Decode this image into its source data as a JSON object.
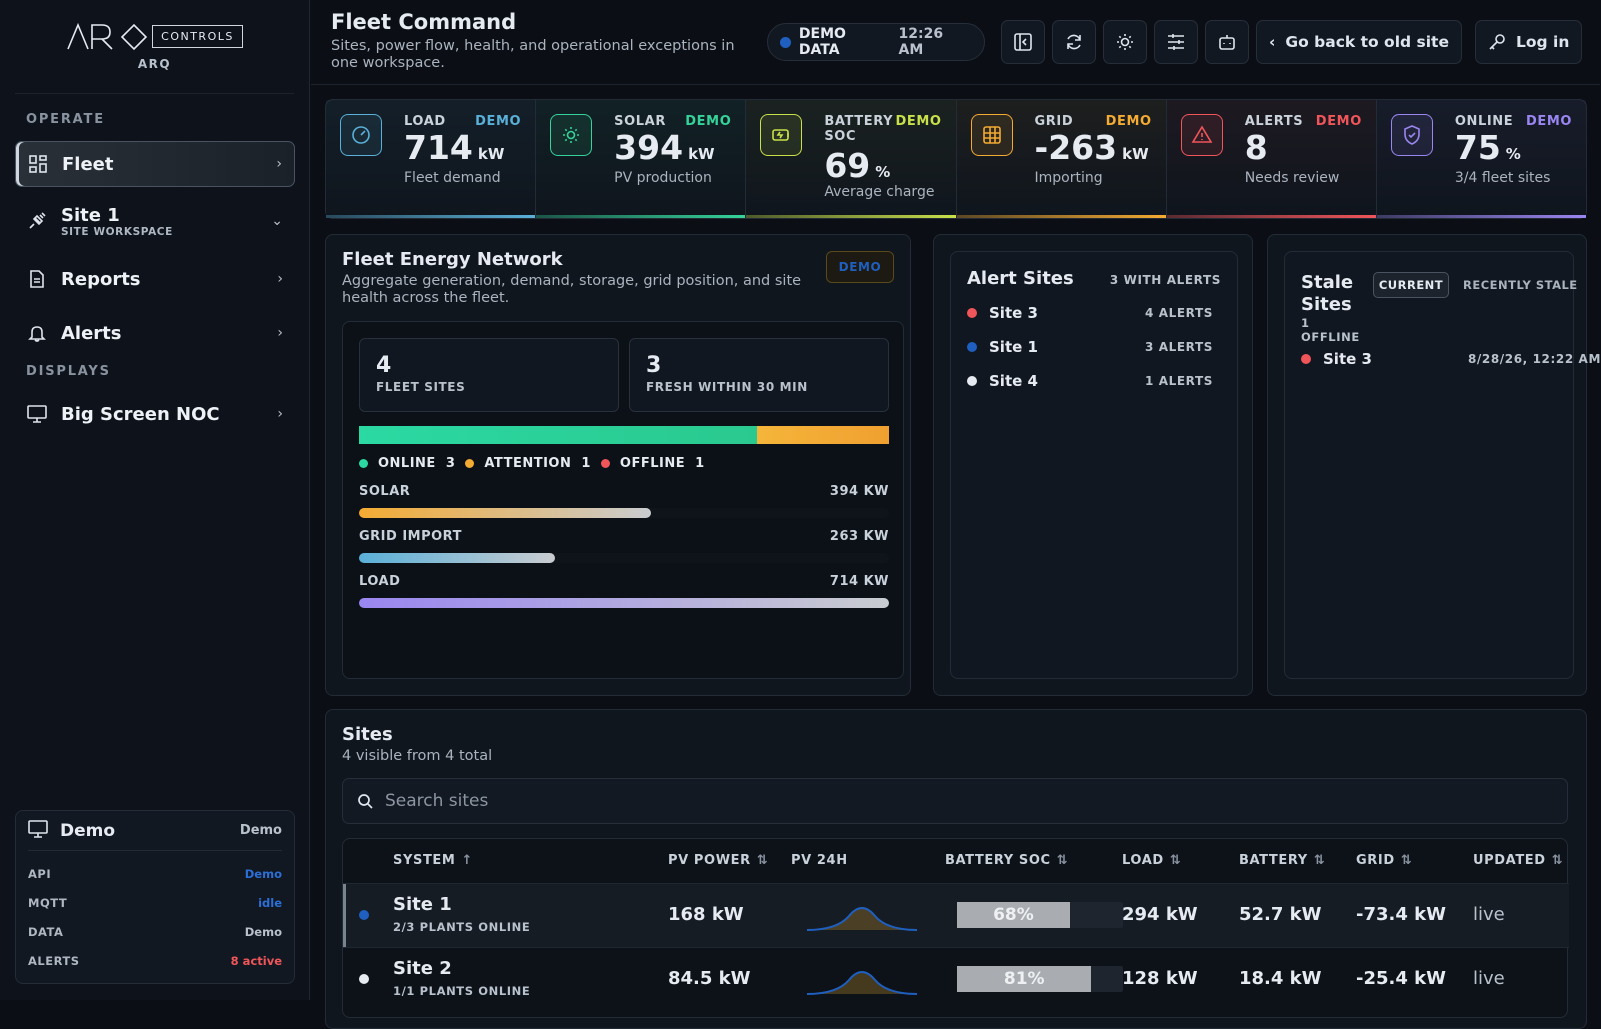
{
  "brand": {
    "logo": "ARQ",
    "tag": "CONTROLS",
    "sub": "ARQ"
  },
  "sidebar": {
    "operate": "OPERATE",
    "displays": "DISPLAYS",
    "fleet": "Fleet",
    "site1": "Site 1",
    "site1_sub": "SITE WORKSPACE",
    "reports": "Reports",
    "alerts": "Alerts",
    "noc": "Big Screen NOC"
  },
  "demo": {
    "title": "Demo",
    "badge": "Demo",
    "rows": [
      {
        "k": "API",
        "v": "Demo",
        "c": "#2b6fd6"
      },
      {
        "k": "MQTT",
        "v": "idle",
        "c": "#2b6fd6"
      },
      {
        "k": "DATA",
        "v": "Demo",
        "c": "#b8c1cc"
      },
      {
        "k": "ALERTS",
        "v": "8 active",
        "c": "#f0555a"
      }
    ]
  },
  "header": {
    "title": "Fleet Command",
    "subtitle": "Sites, power flow, health, and operational exceptions in one workspace.",
    "pill_label": "DEMO DATA",
    "pill_time": "12:26 AM",
    "back": "Go back to old site",
    "login": "Log in"
  },
  "kpis": [
    {
      "label": "LOAD",
      "demo": "DEMO",
      "value": "714",
      "unit": "kW",
      "caption": "Fleet demand",
      "color": "#5ab0d8",
      "icon": "gauge-icon"
    },
    {
      "label": "SOLAR",
      "demo": "DEMO",
      "value": "394",
      "unit": "kW",
      "caption": "PV production",
      "color": "#35d39a",
      "icon": "sun-icon"
    },
    {
      "label": "BATTERY SOC",
      "demo": "DEMO",
      "value": "69",
      "unit": "%",
      "caption": "Average charge",
      "color": "#c8e04a",
      "icon": "battery-icon"
    },
    {
      "label": "GRID",
      "demo": "DEMO",
      "value": "-263",
      "unit": "kW",
      "caption": "Importing",
      "color": "#f4ab32",
      "icon": "grid-icon"
    },
    {
      "label": "ALERTS",
      "demo": "DEMO",
      "value": "8",
      "unit": "",
      "caption": "Needs review",
      "color": "#f0555a",
      "icon": "warning-icon"
    },
    {
      "label": "ONLINE",
      "demo": "DEMO",
      "value": "75",
      "unit": "%",
      "caption": "3/4 fleet sites",
      "color": "#9a86f0",
      "icon": "shield-icon"
    }
  ],
  "network": {
    "title": "Fleet Energy Network",
    "subtitle": "Aggregate generation, demand, storage, grid position, and site health across the fleet.",
    "badge": "DEMO",
    "fleet_sites": "4",
    "fleet_sites_label": "FLEET SITES",
    "fresh": "3",
    "fresh_label": "FRESH WITHIN 30 MIN",
    "health": {
      "online_label": "ONLINE",
      "online": "3",
      "attention_label": "ATTENTION",
      "attention": "1",
      "offline_label": "OFFLINE",
      "offline": "1",
      "online_frac": 0.75,
      "attention_frac": 0.25
    },
    "flows": [
      {
        "label": "SOLAR",
        "value": "394 KW",
        "frac": 0.55,
        "from": "#f4ab32",
        "to": "#c9ccd0"
      },
      {
        "label": "GRID IMPORT",
        "value": "263 KW",
        "frac": 0.37,
        "from": "#5ab0d8",
        "to": "#c9ccd0"
      },
      {
        "label": "LOAD",
        "value": "714 KW",
        "frac": 1.0,
        "from": "#9a86f0",
        "to": "#c9ccd0"
      }
    ]
  },
  "alert_sites": {
    "title": "Alert Sites",
    "count": "3 WITH ALERTS",
    "items": [
      {
        "name": "Site 3",
        "count": "4 ALERTS",
        "color": "#f0555a"
      },
      {
        "name": "Site 1",
        "count": "3 ALERTS",
        "color": "#1f5fbf"
      },
      {
        "name": "Site 4",
        "count": "1 ALERTS",
        "color": "#e6ebf2"
      }
    ]
  },
  "stale": {
    "title1": "Stale",
    "title2": "Sites",
    "sub1": "1",
    "sub2": "OFFLINE",
    "tab_current": "CURRENT",
    "tab_recent": "RECENTLY STALE",
    "items": [
      {
        "name": "Site 3",
        "time": "8/28/26, 12:22 AM",
        "color": "#f0555a"
      }
    ]
  },
  "sites": {
    "title": "Sites",
    "subtitle": "4 visible from 4 total",
    "search_placeholder": "Search sites",
    "columns": [
      "SYSTEM",
      "PV POWER",
      "PV 24H",
      "BATTERY SOC",
      "LOAD",
      "BATTERY",
      "GRID",
      "UPDATED"
    ],
    "rows": [
      {
        "name": "Site 1",
        "sub": "2/3 PLANTS ONLINE",
        "pv": "168 kW",
        "soc": "68%",
        "soc_frac": 0.68,
        "load": "294 kW",
        "battery": "52.7 kW",
        "grid": "-73.4 kW",
        "updated": "live",
        "color": "#1f5fbf"
      },
      {
        "name": "Site 2",
        "sub": "1/1 PLANTS ONLINE",
        "pv": "84.5 kW",
        "soc": "81%",
        "soc_frac": 0.81,
        "load": "128 kW",
        "battery": "18.4 kW",
        "grid": "-25.4 kW",
        "updated": "live",
        "color": "#e6ebf2"
      }
    ]
  }
}
